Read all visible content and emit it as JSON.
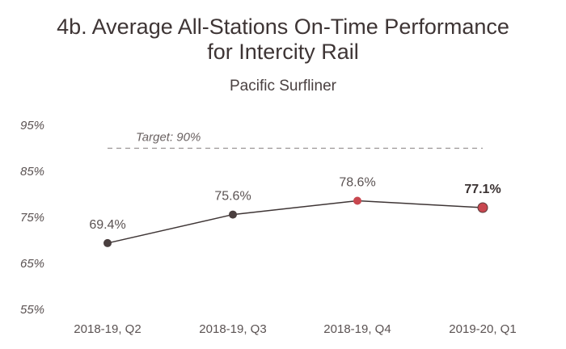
{
  "chart_data": {
    "type": "line",
    "title": "4b. Average All-Stations On-Time Performance for Intercity Rail",
    "title_lines": [
      "4b. Average All-Stations On-Time Performance",
      "for Intercity Rail"
    ],
    "subtitle": "Pacific Surfliner",
    "categories": [
      "2018-19, Q2",
      "2018-19, Q3",
      "2018-19, Q4",
      "2019-20, Q1"
    ],
    "series": [
      {
        "values": [
          69.4,
          75.6,
          78.6,
          77.1
        ],
        "labels": [
          "69.4%",
          "75.6%",
          "78.6%",
          "77.1%"
        ],
        "point_colors": [
          "#4a3f3f",
          "#4a3f3f",
          "#c8474f",
          "#c8474f"
        ]
      }
    ],
    "y_ticks": [
      55,
      65,
      75,
      85,
      95
    ],
    "y_tick_labels": [
      "55%",
      "65%",
      "75%",
      "85%",
      "95%"
    ],
    "ylim": [
      55,
      95
    ],
    "target": {
      "value": 90,
      "label": "Target: 90%"
    },
    "line_color": "#3e3535",
    "grid": false
  }
}
